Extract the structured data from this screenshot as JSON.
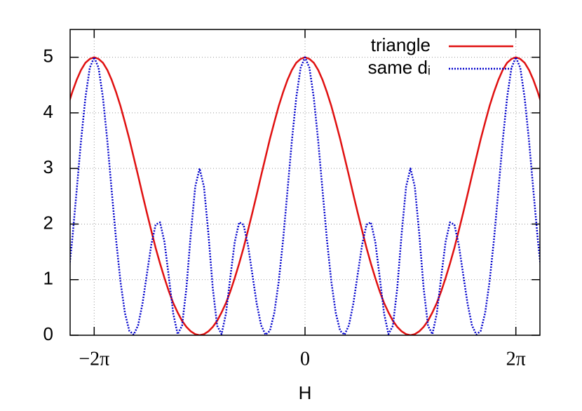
{
  "chart_data": {
    "type": "line",
    "x_label": "H",
    "x": [
      -7.069,
      -6.938,
      -6.807,
      -6.676,
      -6.545,
      -6.414,
      -6.283,
      -6.152,
      -6.021,
      -5.89,
      -5.76,
      -5.629,
      -5.498,
      -5.367,
      -5.236,
      -5.105,
      -4.974,
      -4.843,
      -4.712,
      -4.581,
      -4.451,
      -4.32,
      -4.189,
      -4.058,
      -3.927,
      -3.796,
      -3.665,
      -3.534,
      -3.403,
      -3.272,
      -3.142,
      -3.011,
      -2.88,
      -2.749,
      -2.618,
      -2.487,
      -2.356,
      -2.225,
      -2.094,
      -1.963,
      -1.833,
      -1.702,
      -1.571,
      -1.44,
      -1.309,
      -1.178,
      -1.047,
      -0.916,
      -0.785,
      -0.654,
      -0.524,
      -0.393,
      -0.262,
      -0.131,
      0,
      0.131,
      0.262,
      0.393,
      0.524,
      0.654,
      0.785,
      0.916,
      1.047,
      1.178,
      1.309,
      1.44,
      1.571,
      1.702,
      1.833,
      1.963,
      2.094,
      2.225,
      2.356,
      2.487,
      2.618,
      2.749,
      2.88,
      3.011,
      3.142,
      3.272,
      3.403,
      3.534,
      3.665,
      3.796,
      3.927,
      4.058,
      4.189,
      4.32,
      4.451,
      4.581,
      4.712,
      4.843,
      4.974,
      5.105,
      5.236,
      5.367,
      5.498,
      5.629,
      5.76,
      5.89,
      6.021,
      6.152,
      6.283,
      6.414,
      6.545,
      6.676,
      6.807,
      6.938,
      7.069
    ],
    "series": [
      {
        "name": "triangle",
        "color": "#e01010",
        "dash": false,
        "values": [
          4.12,
          4.37,
          4.59,
          4.77,
          4.9,
          4.97,
          5,
          4.97,
          4.9,
          4.77,
          4.59,
          4.37,
          4.12,
          3.83,
          3.53,
          3.2,
          2.87,
          2.53,
          2.2,
          1.88,
          1.57,
          1.29,
          1.03,
          0.79,
          0.58,
          0.41,
          0.26,
          0.15,
          0.07,
          0.02,
          0,
          0.02,
          0.07,
          0.15,
          0.26,
          0.41,
          0.58,
          0.79,
          1.03,
          1.29,
          1.57,
          1.88,
          2.2,
          2.53,
          2.87,
          3.2,
          3.53,
          3.83,
          4.12,
          4.37,
          4.59,
          4.77,
          4.9,
          4.97,
          5,
          4.97,
          4.9,
          4.77,
          4.59,
          4.37,
          4.12,
          3.83,
          3.53,
          3.2,
          2.87,
          2.53,
          2.2,
          1.88,
          1.57,
          1.29,
          1.03,
          0.79,
          0.58,
          0.41,
          0.26,
          0.15,
          0.07,
          0.02,
          0,
          0.02,
          0.07,
          0.15,
          0.26,
          0.41,
          0.58,
          0.79,
          1.03,
          1.29,
          1.57,
          1.88,
          2.2,
          2.53,
          2.87,
          3.2,
          3.53,
          3.83,
          4.12,
          4.37,
          4.59,
          4.77,
          4.9,
          4.97,
          5,
          4.97,
          4.9,
          4.77,
          4.59,
          4.37,
          4.12
        ]
      },
      {
        "name": "same dᵢ",
        "color": "#0000cc",
        "dash": true,
        "values": [
          0.96,
          1.71,
          2.59,
          3.49,
          4.27,
          4.81,
          5,
          4.81,
          4.27,
          3.49,
          2.59,
          1.71,
          0.96,
          0.4,
          0.08,
          0.01,
          0.18,
          0.57,
          1.1,
          1.63,
          1.99,
          2.03,
          1.68,
          1.05,
          0.39,
          0.02,
          0.17,
          0.85,
          1.83,
          2.67,
          3,
          2.67,
          1.83,
          0.85,
          0.17,
          0.02,
          0.39,
          1.05,
          1.68,
          2.03,
          1.99,
          1.63,
          1.1,
          0.57,
          0.18,
          0.01,
          0.08,
          0.4,
          0.96,
          1.71,
          2.59,
          3.49,
          4.27,
          4.81,
          5,
          4.81,
          4.27,
          3.49,
          2.59,
          1.71,
          0.96,
          0.4,
          0.08,
          0.01,
          0.18,
          0.57,
          1.1,
          1.63,
          1.99,
          2.03,
          1.68,
          1.05,
          0.39,
          0.02,
          0.17,
          0.85,
          1.83,
          2.67,
          3,
          2.67,
          1.83,
          0.85,
          0.17,
          0.02,
          0.39,
          1.05,
          1.68,
          2.03,
          1.99,
          1.63,
          1.1,
          0.57,
          0.18,
          0.01,
          0.08,
          0.4,
          0.96,
          1.71,
          2.59,
          3.49,
          4.27,
          4.81,
          5,
          4.81,
          4.27,
          3.49,
          2.59,
          1.71,
          0.96
        ]
      }
    ],
    "xlim": [
      -7,
      7
    ],
    "xticks": [
      {
        "value": -6.283,
        "label": "−2π"
      },
      0,
      {
        "value": 6.283,
        "label": "2π"
      }
    ],
    "ylim": [
      0,
      5.5
    ],
    "yticks": [
      0,
      1,
      2,
      3,
      4,
      5
    ],
    "grid": true,
    "legend": "top-right"
  }
}
